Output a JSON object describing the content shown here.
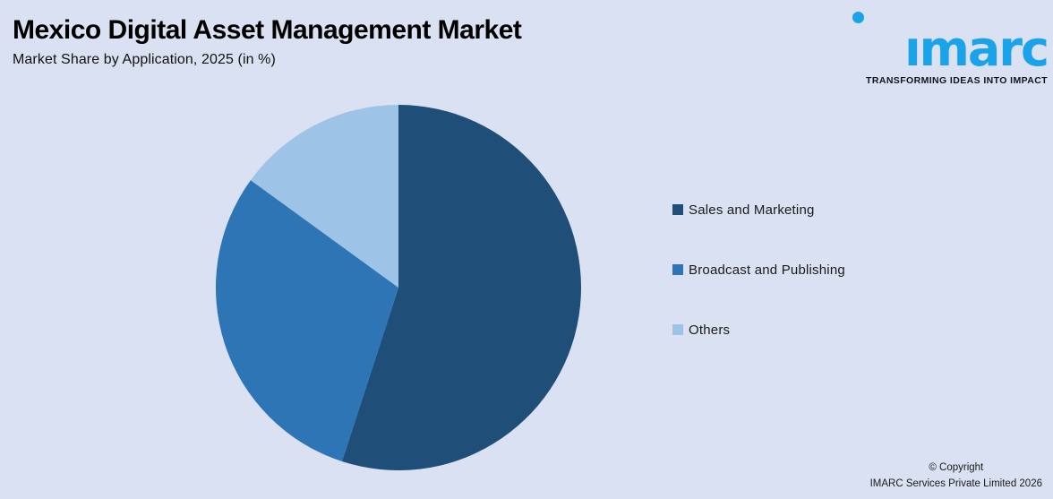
{
  "header": {
    "title": "Mexico Digital Asset Management Market",
    "subtitle": "Market Share by Application, 2025 (in %)"
  },
  "logo": {
    "wordmark": "imarc",
    "tagline": "TRANSFORMING IDEAS INTO IMPACT",
    "brand_color": "#1aa3e8",
    "tagline_color": "#14141e"
  },
  "chart_data": {
    "type": "pie",
    "title": "Mexico Digital Asset Management Market",
    "subtitle": "Market Share by Application, 2025 (in %)",
    "unit": "%",
    "start_angle_deg": 0,
    "direction": "clockwise",
    "legend_position": "right",
    "data_labels_visible": false,
    "slices": [
      {
        "label": "Sales and Marketing",
        "value": 55,
        "color": "#1f4e79"
      },
      {
        "label": "Broadcast and Publishing",
        "value": 30,
        "color": "#2e75b6"
      },
      {
        "label": "Others",
        "value": 15,
        "color": "#9dc3e6"
      }
    ]
  },
  "footer": {
    "copyright_line1": "© Copyright",
    "copyright_line2": "IMARC Services Private Limited 2026"
  },
  "colors": {
    "background": "#d9e1f2",
    "title_text": "#000000",
    "legend_text": "#1a1a1a"
  }
}
